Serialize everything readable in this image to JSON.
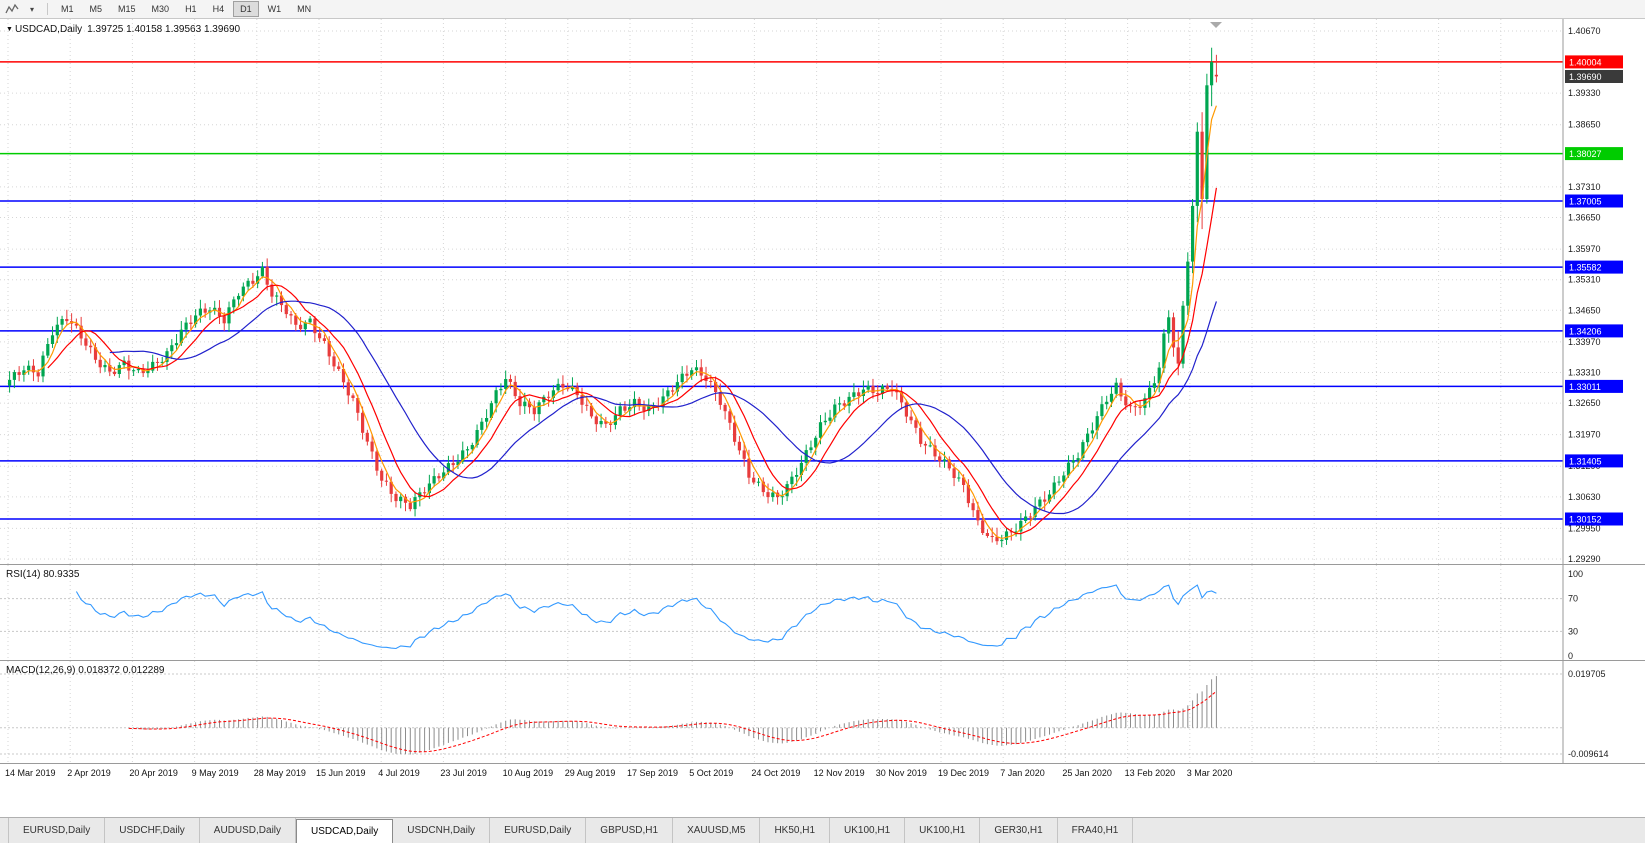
{
  "toolbar": {
    "timeframes": [
      "M1",
      "M5",
      "M15",
      "M30",
      "H1",
      "H4",
      "D1",
      "W1",
      "MN"
    ],
    "active_timeframe": "D1"
  },
  "chart": {
    "symbol": "USDCAD,Daily",
    "ohlc": "1.39725 1.40158 1.39563 1.39690",
    "current_price": "1.39690",
    "colors": {
      "up": "#00A651",
      "down": "#E83C3C",
      "grid": "#D6D6D6",
      "axis_text": "#1A1A1A",
      "current_tag_bg": "#3A3A3A"
    }
  },
  "rsi_panel": {
    "label": "RSI(14) 80.9335",
    "ticks": [
      "100",
      "70",
      "30",
      "0"
    ],
    "levels": [
      70,
      30
    ],
    "line_color": "#3399FF"
  },
  "macd_panel": {
    "label": "MACD(12,26,9) 0.018372 0.012289",
    "ticks": [
      {
        "label": "0.019705",
        "value": 0.019705
      },
      {
        "label": "-0.009614",
        "value": -0.009614
      }
    ],
    "histogram_color": "#8C8C8C",
    "signal_color": "#FF0000"
  },
  "tabs": {
    "active_index": 3,
    "items": [
      "EURUSD,Daily",
      "USDCHF,Daily",
      "AUDUSD,Daily",
      "USDCAD,Daily",
      "USDCNH,Daily",
      "EURUSD,Daily",
      "GBPUSD,H1",
      "XAUUSD,M5",
      "HK50,H1",
      "UK100,H1",
      "UK100,H1",
      "GER30,H1",
      "FRA40,H1"
    ]
  },
  "chart_data": {
    "type": "candlestick",
    "symbol": "USDCAD",
    "timeframe": "Daily",
    "current_bar": {
      "open": 1.39725,
      "high": 1.40158,
      "low": 1.39563,
      "close": 1.3969
    },
    "y_axis_range": [
      1.2929,
      1.4067
    ],
    "y_ticks": [
      "1.40670",
      "1.39330",
      "1.38650",
      "1.37310",
      "1.36650",
      "1.35970",
      "1.35310",
      "1.34650",
      "1.33970",
      "1.33310",
      "1.32650",
      "1.31970",
      "1.31290",
      "1.30630",
      "1.29950",
      "1.29290"
    ],
    "x_labels": [
      "14 Mar 2019",
      "2 Apr 2019",
      "20 Apr 2019",
      "9 May 2019",
      "28 May 2019",
      "15 Jun 2019",
      "4 Jul 2019",
      "23 Jul 2019",
      "10 Aug 2019",
      "29 Aug 2019",
      "17 Sep 2019",
      "5 Oct 2019",
      "24 Oct 2019",
      "12 Nov 2019",
      "30 Nov 2019",
      "19 Dec 2019",
      "7 Jan 2020",
      "25 Jan 2020",
      "13 Feb 2020",
      "3 Mar 2020"
    ],
    "horizontal_lines": [
      {
        "label": "1.40004",
        "value": 1.40004,
        "color": "#FF0000"
      },
      {
        "label": "1.38027",
        "value": 1.38027,
        "color": "#00CC00"
      },
      {
        "label": "1.37005",
        "value": 1.37005,
        "color": "#0000FF"
      },
      {
        "label": "1.35582",
        "value": 1.35582,
        "color": "#0000FF"
      },
      {
        "label": "1.34206",
        "value": 1.34206,
        "color": "#0000FF"
      },
      {
        "label": "1.33011",
        "value": 1.33011,
        "color": "#0000FF"
      },
      {
        "label": "1.31405",
        "value": 1.31405,
        "color": "#0000FF"
      },
      {
        "label": "1.30152",
        "value": 1.30152,
        "color": "#0000FF"
      }
    ],
    "close_waypoints": [
      [
        0,
        1.3315
      ],
      [
        3,
        1.334
      ],
      [
        6,
        1.333
      ],
      [
        9,
        1.342
      ],
      [
        12,
        1.345
      ],
      [
        15,
        1.341
      ],
      [
        18,
        1.336
      ],
      [
        21,
        1.333
      ],
      [
        24,
        1.335
      ],
      [
        27,
        1.333
      ],
      [
        30,
        1.3345
      ],
      [
        33,
        1.337
      ],
      [
        36,
        1.342
      ],
      [
        39,
        1.3455
      ],
      [
        42,
        1.347
      ],
      [
        45,
        1.3445
      ],
      [
        48,
        1.3505
      ],
      [
        51,
        1.353
      ],
      [
        53,
        1.355
      ],
      [
        55,
        1.35
      ],
      [
        58,
        1.3465
      ],
      [
        60,
        1.343
      ],
      [
        63,
        1.344
      ],
      [
        66,
        1.339
      ],
      [
        69,
        1.333
      ],
      [
        72,
        1.327
      ],
      [
        75,
        1.318
      ],
      [
        78,
        1.31
      ],
      [
        81,
        1.306
      ],
      [
        84,
        1.3045
      ],
      [
        87,
        1.308
      ],
      [
        90,
        1.311
      ],
      [
        93,
        1.3135
      ],
      [
        96,
        1.3165
      ],
      [
        99,
        1.322
      ],
      [
        102,
        1.3285
      ],
      [
        104,
        1.332
      ],
      [
        107,
        1.3265
      ],
      [
        110,
        1.325
      ],
      [
        113,
        1.3285
      ],
      [
        116,
        1.3305
      ],
      [
        119,
        1.3285
      ],
      [
        122,
        1.3235
      ],
      [
        125,
        1.3215
      ],
      [
        128,
        1.325
      ],
      [
        131,
        1.3265
      ],
      [
        134,
        1.325
      ],
      [
        137,
        1.3275
      ],
      [
        140,
        1.331
      ],
      [
        143,
        1.334
      ],
      [
        146,
        1.332
      ],
      [
        149,
        1.327
      ],
      [
        152,
        1.319
      ],
      [
        155,
        1.311
      ],
      [
        158,
        1.3075
      ],
      [
        161,
        1.306
      ],
      [
        164,
        1.31
      ],
      [
        167,
        1.3155
      ],
      [
        170,
        1.3215
      ],
      [
        173,
        1.3255
      ],
      [
        176,
        1.3275
      ],
      [
        179,
        1.3295
      ],
      [
        182,
        1.329
      ],
      [
        185,
        1.33
      ],
      [
        188,
        1.3245
      ],
      [
        191,
        1.3185
      ],
      [
        194,
        1.3155
      ],
      [
        197,
        1.3125
      ],
      [
        200,
        1.3085
      ],
      [
        203,
        1.3005
      ],
      [
        206,
        1.2968
      ],
      [
        209,
        1.298
      ],
      [
        212,
        1.3005
      ],
      [
        215,
        1.304
      ],
      [
        218,
        1.307
      ],
      [
        221,
        1.3115
      ],
      [
        224,
        1.3155
      ],
      [
        227,
        1.3215
      ],
      [
        230,
        1.3275
      ],
      [
        232,
        1.33
      ],
      [
        235,
        1.325
      ],
      [
        238,
        1.327
      ],
      [
        241,
        1.334
      ]
    ],
    "final_candles": [
      [
        1.334,
        1.3425,
        1.333,
        1.3415
      ],
      [
        1.3415,
        1.3465,
        1.3395,
        1.345
      ],
      [
        1.345,
        1.346,
        1.3365,
        1.3385
      ],
      [
        1.3385,
        1.342,
        1.3325,
        1.335
      ],
      [
        1.335,
        1.3485,
        1.334,
        1.3475
      ],
      [
        1.3475,
        1.359,
        1.3455,
        1.357
      ],
      [
        1.357,
        1.3705,
        1.3545,
        1.369
      ],
      [
        1.369,
        1.387,
        1.3655,
        1.385
      ],
      [
        1.385,
        1.3892,
        1.364,
        1.3705
      ],
      [
        1.3705,
        1.3975,
        1.3695,
        1.395
      ],
      [
        1.395,
        1.4031,
        1.3905,
        1.4
      ],
      [
        1.39725,
        1.40158,
        1.39563,
        1.3969
      ]
    ],
    "moving_averages": [
      {
        "period": 4,
        "color": "#FF9900"
      },
      {
        "period": 9,
        "color": "#FF0000"
      },
      {
        "period": 22,
        "color": "#2121CC"
      }
    ],
    "rsi": {
      "period": 14,
      "value": 80.9335
    },
    "macd": {
      "fast": 12,
      "slow": 26,
      "signal": 9,
      "value": 0.018372,
      "signal_value": 0.012289
    }
  }
}
